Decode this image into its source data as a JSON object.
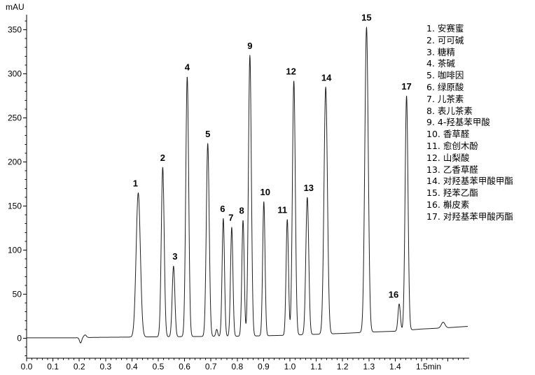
{
  "colors": {
    "background": "#ffffff",
    "trace": "#1f1f1f",
    "axis": "#000000",
    "text": "#000000"
  },
  "chart_data": {
    "type": "line",
    "title": "",
    "ylabel": "mAU",
    "xlabel": "min",
    "xlim": [
      0,
      1.68
    ],
    "ylim": [
      -20,
      366
    ],
    "grid": "off",
    "legend_position": "right",
    "y_ticks": [
      0,
      50,
      100,
      150,
      200,
      250,
      300,
      350
    ],
    "y_minor_step": 10,
    "x_minor_step": 0.02,
    "x_ticks": [
      {
        "v": 0.0,
        "label": "0.0"
      },
      {
        "v": 0.1,
        "label": "0.1"
      },
      {
        "v": 0.2,
        "label": "0.2"
      },
      {
        "v": 0.3,
        "label": "0.3"
      },
      {
        "v": 0.4,
        "label": "0.4"
      },
      {
        "v": 0.5,
        "label": "0.5"
      },
      {
        "v": 0.6,
        "label": "0.6"
      },
      {
        "v": 0.7,
        "label": "0.7"
      },
      {
        "v": 0.8,
        "label": "0.8"
      },
      {
        "v": 0.9,
        "label": "0.9"
      },
      {
        "v": 1.0,
        "label": "1.0"
      },
      {
        "v": 1.1,
        "label": "1.1"
      },
      {
        "v": 1.2,
        "label": "1.2"
      },
      {
        "v": 1.3,
        "label": "1.3"
      },
      {
        "v": 1.4,
        "label": "1.4"
      },
      {
        "v": 1.5,
        "label": "1.5min",
        "dx": 10
      },
      {
        "v": 1.6,
        "label": ""
      }
    ],
    "baseline_points": [
      [
        0,
        0.5
      ],
      [
        0.18,
        0.5
      ],
      [
        0.26,
        1
      ],
      [
        0.45,
        1.5
      ],
      [
        0.65,
        2
      ],
      [
        0.85,
        2.5
      ],
      [
        1.0,
        3.5
      ],
      [
        1.1,
        4.5
      ],
      [
        1.2,
        5.5
      ],
      [
        1.3,
        7
      ],
      [
        1.4,
        8
      ],
      [
        1.5,
        10.5
      ],
      [
        1.6,
        12
      ],
      [
        1.675,
        13.5
      ]
    ],
    "extra_features": [
      {
        "t": 0.205,
        "amp": -6,
        "sigma": 0.004
      },
      {
        "t": 0.222,
        "amp": 3,
        "sigma": 0.005
      },
      {
        "t": 0.722,
        "amp": 8,
        "sigma": 0.0035
      },
      {
        "t": 1.582,
        "amp": 6.5,
        "sigma": 0.007
      }
    ],
    "peaks": [
      {
        "n": "1",
        "name": "安赛蜜",
        "t": 0.424,
        "apex_mau": 165,
        "sigma": 0.008,
        "label_dx": -4
      },
      {
        "n": "2",
        "name": "可可碱",
        "t": 0.517,
        "apex_mau": 194,
        "sigma": 0.0055,
        "label_dx": 0
      },
      {
        "n": "3",
        "name": "糖精",
        "t": 0.558,
        "apex_mau": 82,
        "sigma": 0.005,
        "label_dx": 2
      },
      {
        "n": "4",
        "name": "茶碱",
        "t": 0.61,
        "apex_mau": 297,
        "sigma": 0.0055,
        "label_dx": 0
      },
      {
        "n": "5",
        "name": "咖啡因",
        "t": 0.688,
        "apex_mau": 221,
        "sigma": 0.0055,
        "label_dx": 0
      },
      {
        "n": "6",
        "name": "绿原酸",
        "t": 0.747,
        "apex_mau": 136,
        "sigma": 0.0045,
        "label_dx": -1
      },
      {
        "n": "7",
        "name": "儿茶素",
        "t": 0.779,
        "apex_mau": 126,
        "sigma": 0.0045,
        "label_dx": -1
      },
      {
        "n": "8",
        "name": "表儿茶素",
        "t": 0.822,
        "apex_mau": 134,
        "sigma": 0.0045,
        "label_dx": -2
      },
      {
        "n": "9",
        "name": "4-羟基苯甲酸",
        "t": 0.848,
        "apex_mau": 321,
        "sigma": 0.0055,
        "label_dx": 0
      },
      {
        "n": "10",
        "name": "香草醛",
        "t": 0.901,
        "apex_mau": 155,
        "sigma": 0.0045,
        "label_dx": 2
      },
      {
        "n": "11",
        "name": "愈创木酚",
        "t": 0.99,
        "apex_mau": 135,
        "sigma": 0.0045,
        "label_dx": -7
      },
      {
        "n": "12",
        "name": "山梨酸",
        "t": 1.015,
        "apex_mau": 292,
        "sigma": 0.0055,
        "label_dx": -4
      },
      {
        "n": "13",
        "name": "乙香草醛",
        "t": 1.066,
        "apex_mau": 160,
        "sigma": 0.0055,
        "label_dx": 2
      },
      {
        "n": "14",
        "name": "对羟基苯甲酸甲酯",
        "t": 1.136,
        "apex_mau": 285,
        "sigma": 0.0065,
        "label_dx": 1
      },
      {
        "n": "15",
        "name": "羟苯乙酯",
        "t": 1.291,
        "apex_mau": 353,
        "sigma": 0.0065,
        "label_dx": 0
      },
      {
        "n": "16",
        "name": "槲皮素",
        "t": 1.415,
        "apex_mau": 39,
        "sigma": 0.0045,
        "label_dx": -8
      },
      {
        "n": "17",
        "name": "对羟基苯甲酸丙酯",
        "t": 1.443,
        "apex_mau": 275,
        "sigma": 0.0055,
        "label_dx": 0
      }
    ]
  },
  "legend": {
    "items": [
      "1. 安赛蜜",
      "2. 可可碱",
      "3. 糖精",
      "4. 茶碱",
      "5. 咖啡因",
      "6. 绿原酸",
      "7. 儿茶素",
      "8. 表儿茶素",
      "9. 4-羟基苯甲酸",
      "10. 香草醛",
      "11. 愈创木酚",
      "12. 山梨酸",
      "13. 乙香草醛",
      "14. 对羟基苯甲酸甲酯",
      "15. 羟苯乙酯",
      "16. 槲皮素",
      "17. 对羟基苯甲酸丙酯"
    ]
  }
}
